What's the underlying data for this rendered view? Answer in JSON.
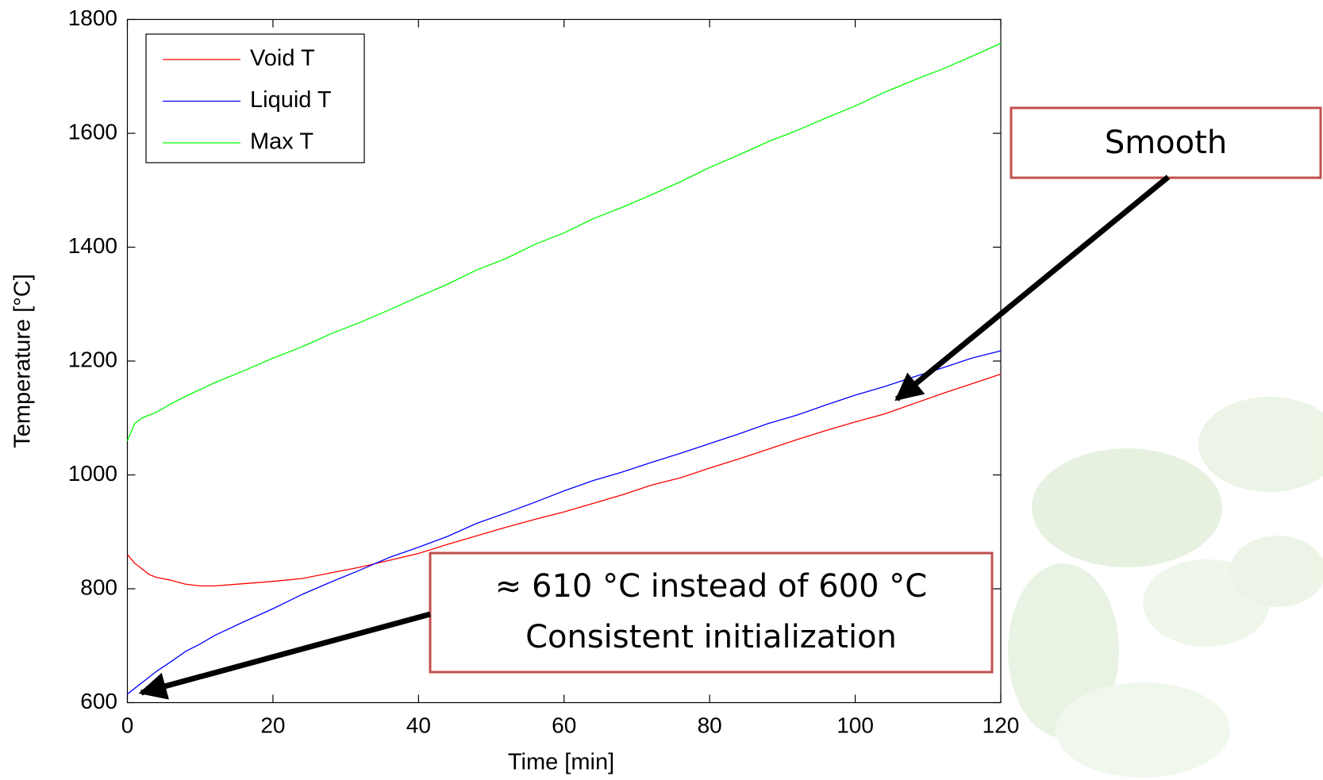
{
  "chart_data": {
    "type": "line",
    "x": [
      0,
      1,
      2,
      3,
      4,
      6,
      8,
      10,
      12,
      16,
      20,
      24,
      28,
      32,
      36,
      40,
      44,
      48,
      52,
      56,
      60,
      64,
      68,
      72,
      76,
      80,
      84,
      88,
      92,
      96,
      100,
      104,
      108,
      112,
      116,
      120
    ],
    "series": [
      {
        "name": "Void T",
        "color": "#ff0000",
        "values": [
          860,
          845,
          835,
          825,
          820,
          815,
          808,
          805,
          805,
          809,
          813,
          818,
          828,
          838,
          850,
          862,
          878,
          893,
          908,
          922,
          935,
          950,
          965,
          982,
          995,
          1012,
          1028,
          1045,
          1062,
          1078,
          1093,
          1107,
          1125,
          1143,
          1160,
          1177
        ]
      },
      {
        "name": "Liquid T",
        "color": "#0000ff",
        "values": [
          615,
          625,
          635,
          645,
          655,
          672,
          690,
          703,
          718,
          742,
          765,
          790,
          812,
          833,
          855,
          873,
          892,
          915,
          933,
          952,
          972,
          990,
          1005,
          1022,
          1038,
          1055,
          1072,
          1090,
          1105,
          1123,
          1140,
          1155,
          1172,
          1188,
          1205,
          1218
        ]
      },
      {
        "name": "Max T",
        "color": "#00ff00",
        "values": [
          1060,
          1090,
          1100,
          1105,
          1110,
          1125,
          1138,
          1150,
          1162,
          1183,
          1205,
          1225,
          1248,
          1268,
          1290,
          1313,
          1335,
          1360,
          1380,
          1405,
          1425,
          1450,
          1470,
          1492,
          1515,
          1540,
          1562,
          1585,
          1605,
          1627,
          1648,
          1672,
          1693,
          1713,
          1735,
          1758
        ]
      }
    ],
    "xlabel": "Time [min]",
    "ylabel": "Temperature [°C]",
    "xlim": [
      0,
      120
    ],
    "xticks": [
      0,
      20,
      40,
      60,
      80,
      100,
      120
    ],
    "ylim": [
      600,
      1800
    ],
    "yticks": [
      600,
      800,
      1000,
      1200,
      1400,
      1600,
      1800
    ],
    "legend": "upper left",
    "annotations": [
      "Smooth",
      "≈ 610 °C instead of 600 °C",
      "Consistent initialization"
    ]
  }
}
